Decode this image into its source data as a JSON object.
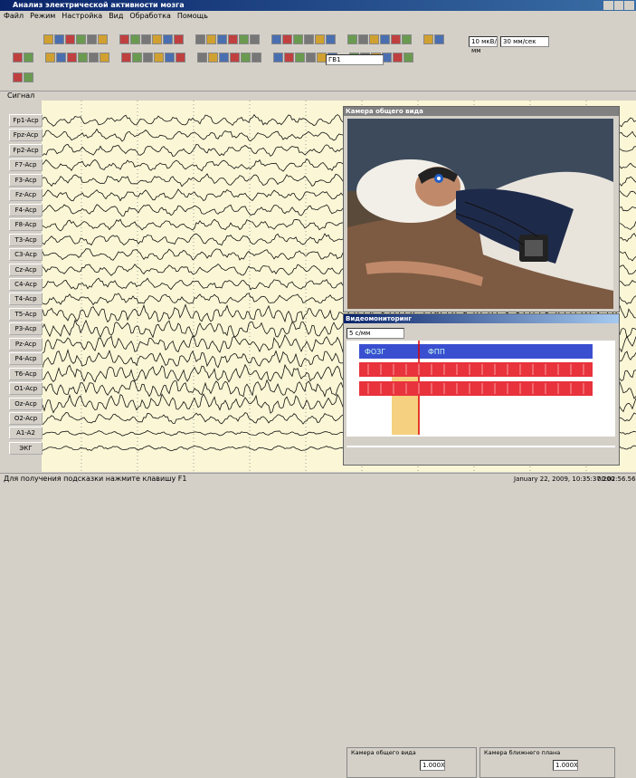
{
  "window": {
    "title": "Анализ электрической активности мозга"
  },
  "menu": [
    "Файл",
    "Режим",
    "Настройка",
    "Вид",
    "Обработка",
    "Помощь"
  ],
  "toolbar": {
    "sensitivity": "10 мкВ/мм",
    "speed": "30 мм/сек",
    "montage": "ГВ1"
  },
  "signal_header": "Сигнал",
  "channels": [
    "Fp1-Acp",
    "Fpz-Acp",
    "Fp2-Acp",
    "F7-Acp",
    "F3-Acp",
    "Fz-Acp",
    "F4-Acp",
    "F8-Acp",
    "T3-Acp",
    "C3-Acp",
    "Cz-Acp",
    "C4-Acp",
    "T4-Acp",
    "T5-Acp",
    "P3-Acp",
    "Pz-Acp",
    "P4-Acp",
    "T6-Acp",
    "O1-Acp",
    "Oz-Acp",
    "O2-Acp",
    "A1-A2",
    "ЭКГ"
  ],
  "camera_window": {
    "title": "Камера общего вида"
  },
  "video_panel": {
    "title": "Видеомониторинг",
    "scale": "5 с/мм",
    "events": [
      "ФОЗГ",
      "ФПП"
    ],
    "groups": [
      {
        "title": "Камера общего вида",
        "zoom": "1.000X"
      },
      {
        "title": "Камера ближнего плана",
        "zoom": "1.000X"
      }
    ]
  },
  "status": {
    "hint": "Для получения подсказки нажмите клавишу F1",
    "timestamp": "January 22, 2009, 10:35:37.200",
    "elapsed": "00:02:56.56"
  }
}
